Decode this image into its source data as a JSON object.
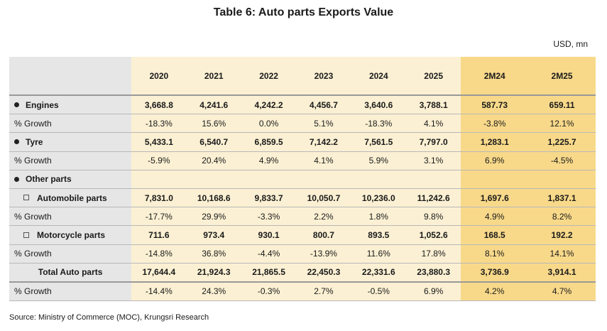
{
  "title": "Table 6: Auto parts Exports Value",
  "unit": "USD, mn",
  "headers": [
    "2020",
    "2021",
    "2022",
    "2023",
    "2024",
    "2025",
    "2M24",
    "2M25"
  ],
  "rows": [
    {
      "label": "Engines",
      "values": [
        "3,668.8",
        "4,241.6",
        "4,242.2",
        "4,456.7",
        "3,640.6",
        "3,788.1",
        "587.73",
        "659.11"
      ]
    },
    {
      "label": "% Growth",
      "values": [
        "-18.3%",
        "15.6%",
        "0.0%",
        "5.1%",
        "-18.3%",
        "4.1%",
        "-3.8%",
        "12.1%"
      ]
    },
    {
      "label": "Tyre",
      "values": [
        "5,433.1",
        "6,540.7",
        "6,859.5",
        "7,142.2",
        "7,561.5",
        "7,797.0",
        "1,283.1",
        "1,225.7"
      ]
    },
    {
      "label": "% Growth",
      "values": [
        "-5.9%",
        "20.4%",
        "4.9%",
        "4.1%",
        "5.9%",
        "3.1%",
        "6.9%",
        "-4.5%"
      ]
    },
    {
      "label": "Other parts",
      "values": [
        "",
        "",
        "",
        "",
        "",
        "",
        "",
        ""
      ]
    },
    {
      "label": "Automobile parts",
      "values": [
        "7,831.0",
        "10,168.6",
        "9,833.7",
        "10,050.7",
        "10,236.0",
        "11,242.6",
        "1,697.6",
        "1,837.1"
      ]
    },
    {
      "label": "% Growth",
      "values": [
        "-17.7%",
        "29.9%",
        "-3.3%",
        "2.2%",
        "1.8%",
        "9.8%",
        "4.9%",
        "8.2%"
      ]
    },
    {
      "label": "Motorcycle parts",
      "values": [
        "711.6",
        "973.4",
        "930.1",
        "800.7",
        "893.5",
        "1,052.6",
        "168.5",
        "192.2"
      ]
    },
    {
      "label": "% Growth",
      "values": [
        "-14.8%",
        "36.8%",
        "-4.4%",
        "-13.9%",
        "11.6%",
        "17.8%",
        "8.1%",
        "14.1%"
      ]
    },
    {
      "label": "Total Auto parts",
      "values": [
        "17,644.4",
        "21,924.3",
        "21,865.5",
        "22,450.3",
        "22,331.6",
        "23,880.3",
        "3,736.9",
        "3,914.1"
      ]
    },
    {
      "label": "% Growth",
      "values": [
        "-14.4%",
        "24.3%",
        "-0.3%",
        "2.7%",
        "-0.5%",
        "6.9%",
        "4.2%",
        "4.7%"
      ]
    }
  ],
  "source": "Source: Ministry of Commerce (MOC), Krungsri Research",
  "colors": {
    "label_bg": "#e6e6e6",
    "year_bg": "#fbf0d3",
    "month_bg": "#f8d98a"
  }
}
